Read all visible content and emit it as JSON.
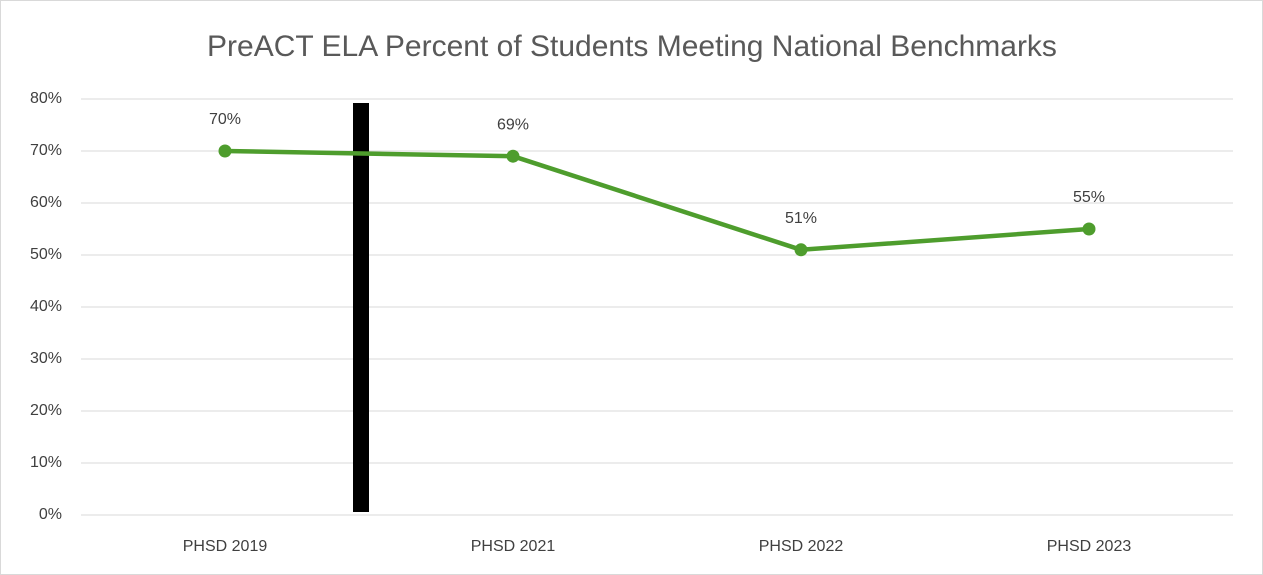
{
  "chart_data": {
    "type": "line",
    "title": "PreACT ELA Percent of Students Meeting National Benchmarks",
    "categories": [
      "PHSD 2019",
      "PHSD 2021",
      "PHSD 2022",
      "PHSD 2023"
    ],
    "series": [
      {
        "name": "PreACT ELA",
        "color": "#4e9d2d",
        "values": [
          70,
          69,
          51,
          55
        ],
        "value_labels": [
          "70%",
          "69%",
          "51%",
          "55%"
        ]
      }
    ],
    "ylim": [
      0,
      80
    ],
    "yticks": [
      {
        "value": 0,
        "label": "0%"
      },
      {
        "value": 10,
        "label": "10%"
      },
      {
        "value": 20,
        "label": "20%"
      },
      {
        "value": 30,
        "label": "30%"
      },
      {
        "value": 40,
        "label": "40%"
      },
      {
        "value": 50,
        "label": "50%"
      },
      {
        "value": 60,
        "label": "60%"
      },
      {
        "value": 70,
        "label": "70%"
      },
      {
        "value": 80,
        "label": "80%"
      }
    ],
    "grid": true
  }
}
